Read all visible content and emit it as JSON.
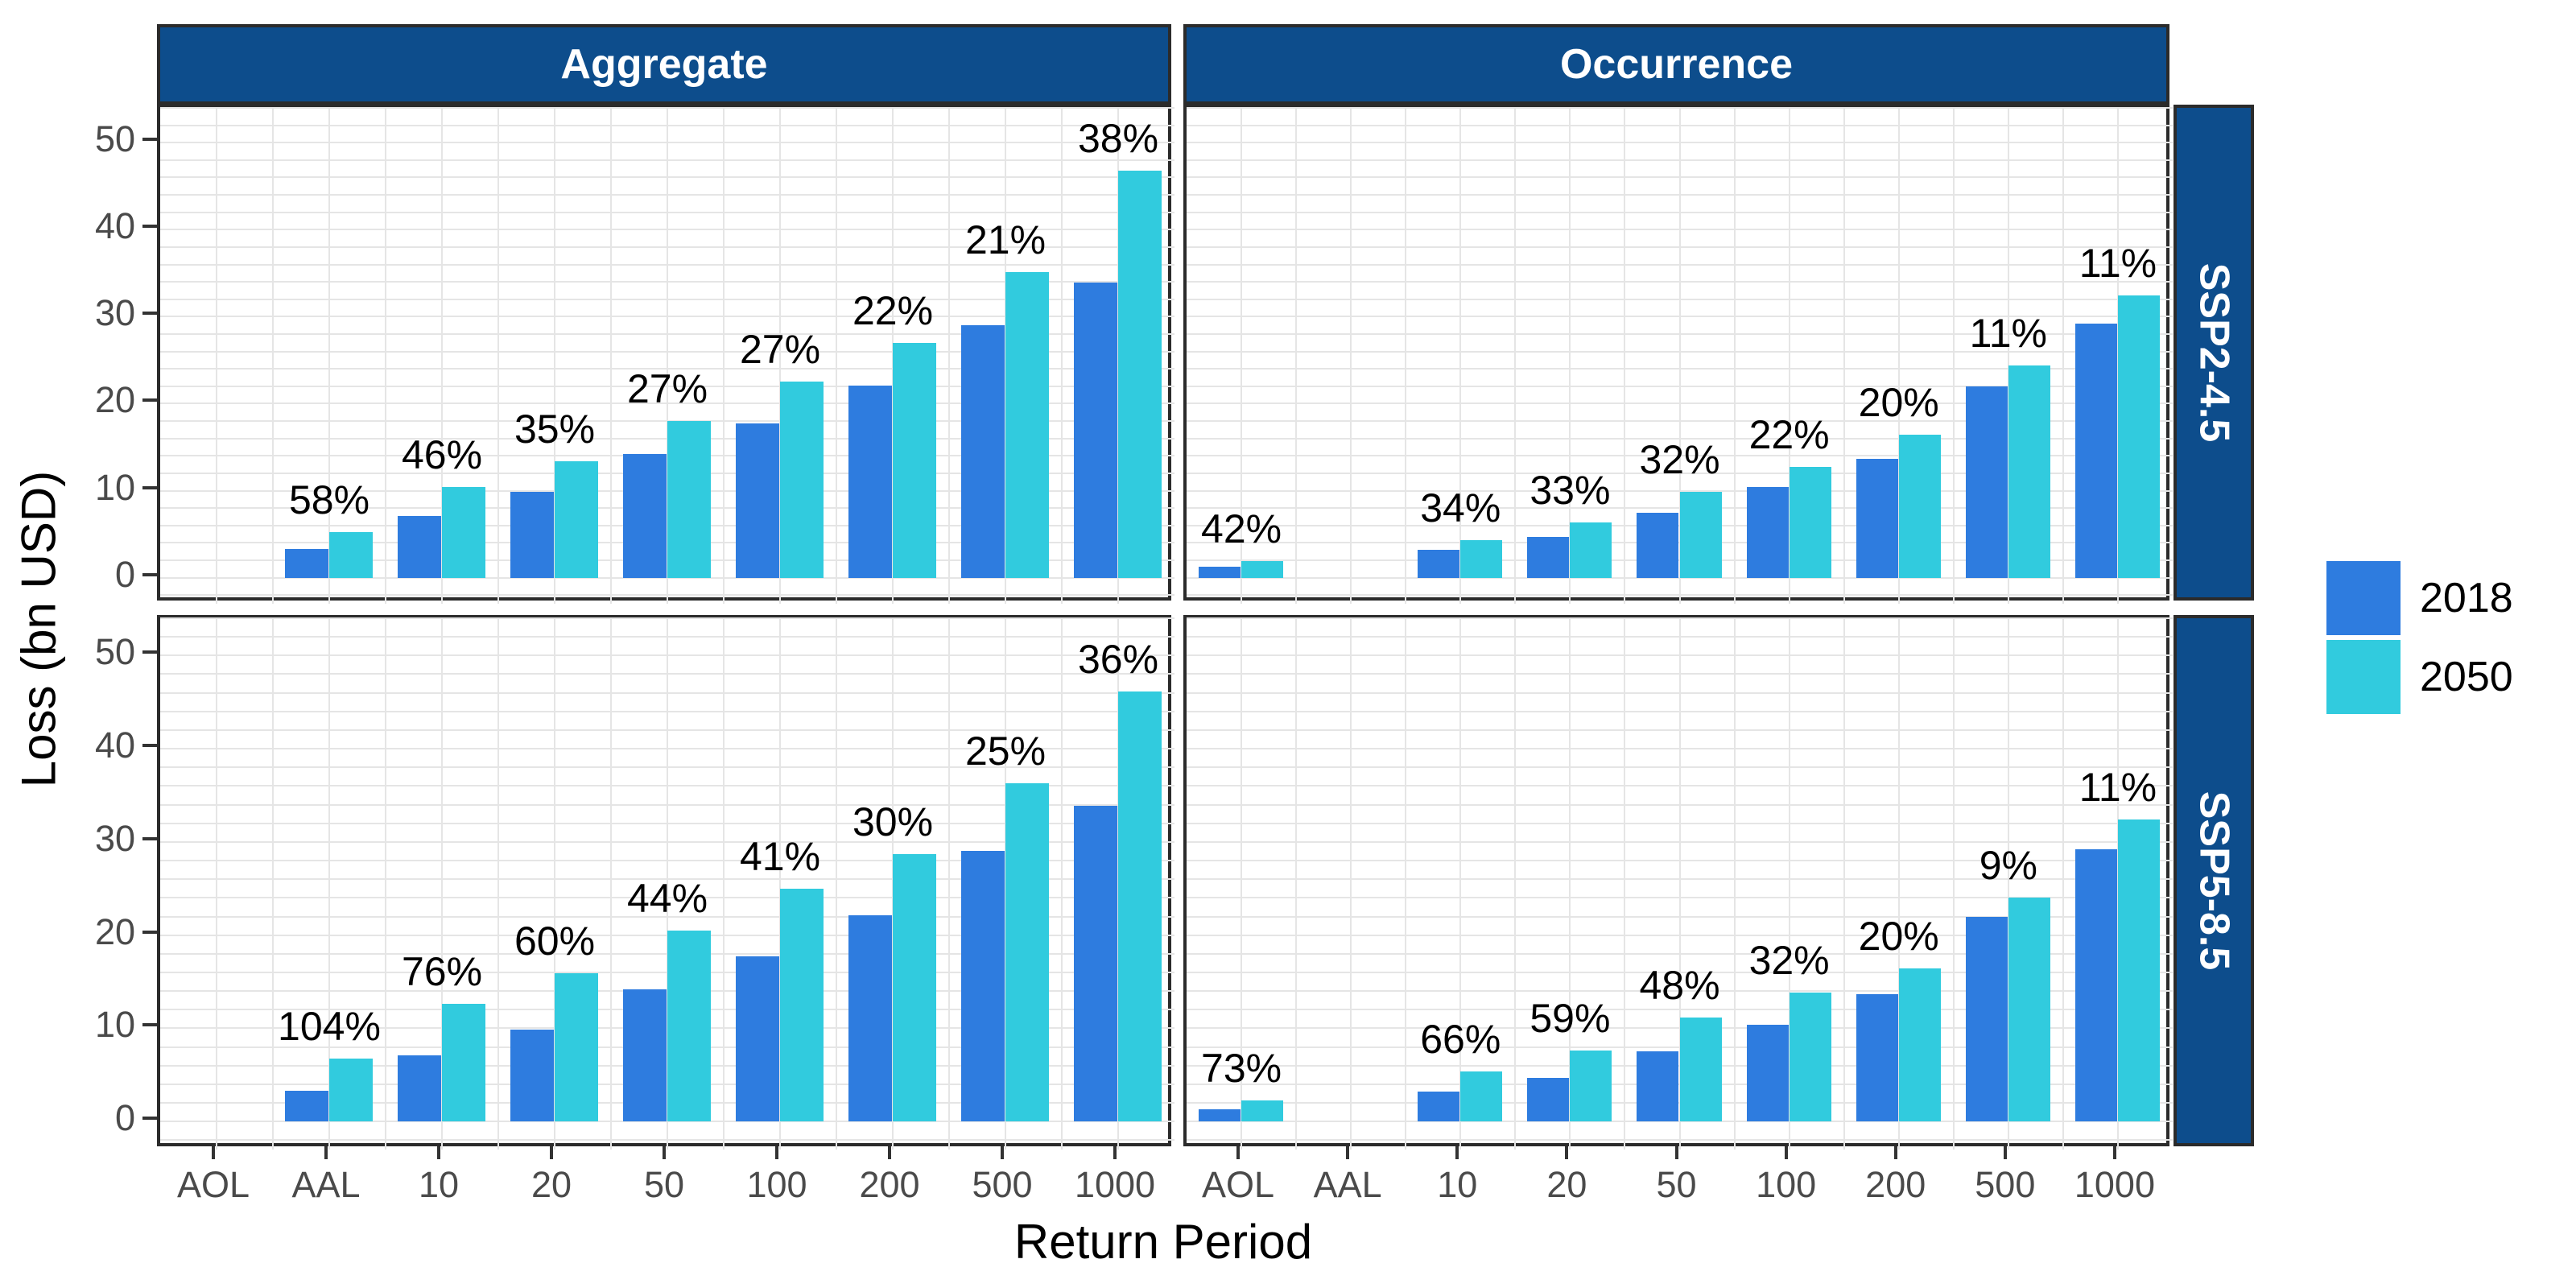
{
  "chart_data": {
    "type": "bar",
    "title": "",
    "xlabel": "Return Period",
    "ylabel": "Loss (bn USD)",
    "categories": [
      "AOL",
      "AAL",
      "10",
      "20",
      "50",
      "100",
      "200",
      "500",
      "1000"
    ],
    "yticks": [
      0,
      10,
      20,
      30,
      40,
      50
    ],
    "ylim": [
      0,
      50
    ],
    "grid": "on",
    "legend_position": "right",
    "facet_columns": [
      "Aggregate",
      "Occurrence"
    ],
    "facet_rows": [
      "SSP2-4.5",
      "SSP5-8.5"
    ],
    "series_names": [
      "2018",
      "2050"
    ],
    "colors": {
      "2018": "#2e7cdf",
      "2050": "#31cbde",
      "strip": "#0d4d8c"
    },
    "panels": [
      {
        "facet_column": "Aggregate",
        "facet_row": "SSP2-4.5",
        "series": [
          {
            "name": "2018",
            "values": [
              null,
              3.3,
              7.1,
              9.9,
              14.2,
              17.7,
              22.1,
              29.0,
              33.9
            ]
          },
          {
            "name": "2050",
            "values": [
              null,
              5.2,
              10.4,
              13.4,
              18.0,
              22.5,
              27.0,
              35.1,
              46.8
            ]
          }
        ],
        "pct_labels": [
          null,
          "58%",
          "46%",
          "35%",
          "27%",
          "27%",
          "22%",
          "21%",
          "38%"
        ]
      },
      {
        "facet_column": "Occurrence",
        "facet_row": "SSP2-4.5",
        "series": [
          {
            "name": "2018",
            "values": [
              1.3,
              null,
              3.2,
              4.7,
              7.5,
              10.4,
              13.7,
              22.0,
              29.2
            ]
          },
          {
            "name": "2050",
            "values": [
              1.9,
              null,
              4.3,
              6.3,
              9.9,
              12.7,
              16.4,
              24.4,
              32.4
            ]
          }
        ],
        "pct_labels": [
          "42%",
          null,
          "34%",
          "33%",
          "32%",
          "22%",
          "20%",
          "11%",
          "11%"
        ]
      },
      {
        "facet_column": "Aggregate",
        "facet_row": "SSP5-8.5",
        "series": [
          {
            "name": "2018",
            "values": [
              null,
              3.3,
              7.1,
              9.9,
              14.2,
              17.7,
              22.1,
              29.0,
              33.9
            ]
          },
          {
            "name": "2050",
            "values": [
              null,
              6.8,
              12.6,
              15.9,
              20.5,
              25.0,
              28.7,
              36.3,
              46.1
            ]
          }
        ],
        "pct_labels": [
          null,
          "104%",
          "76%",
          "60%",
          "44%",
          "41%",
          "30%",
          "25%",
          "36%"
        ]
      },
      {
        "facet_column": "Occurrence",
        "facet_row": "SSP5-8.5",
        "series": [
          {
            "name": "2018",
            "values": [
              1.3,
              null,
              3.2,
              4.7,
              7.5,
              10.4,
              13.7,
              22.0,
              29.2
            ]
          },
          {
            "name": "2050",
            "values": [
              2.3,
              null,
              5.4,
              7.6,
              11.2,
              13.8,
              16.4,
              24.0,
              32.4
            ]
          }
        ],
        "pct_labels": [
          "73%",
          null,
          "66%",
          "59%",
          "48%",
          "32%",
          "20%",
          "9%",
          "11%"
        ]
      }
    ],
    "legend": {
      "entries": [
        {
          "label": "2018",
          "color": "#2e7cdf"
        },
        {
          "label": "2050",
          "color": "#31cbde"
        }
      ]
    }
  }
}
